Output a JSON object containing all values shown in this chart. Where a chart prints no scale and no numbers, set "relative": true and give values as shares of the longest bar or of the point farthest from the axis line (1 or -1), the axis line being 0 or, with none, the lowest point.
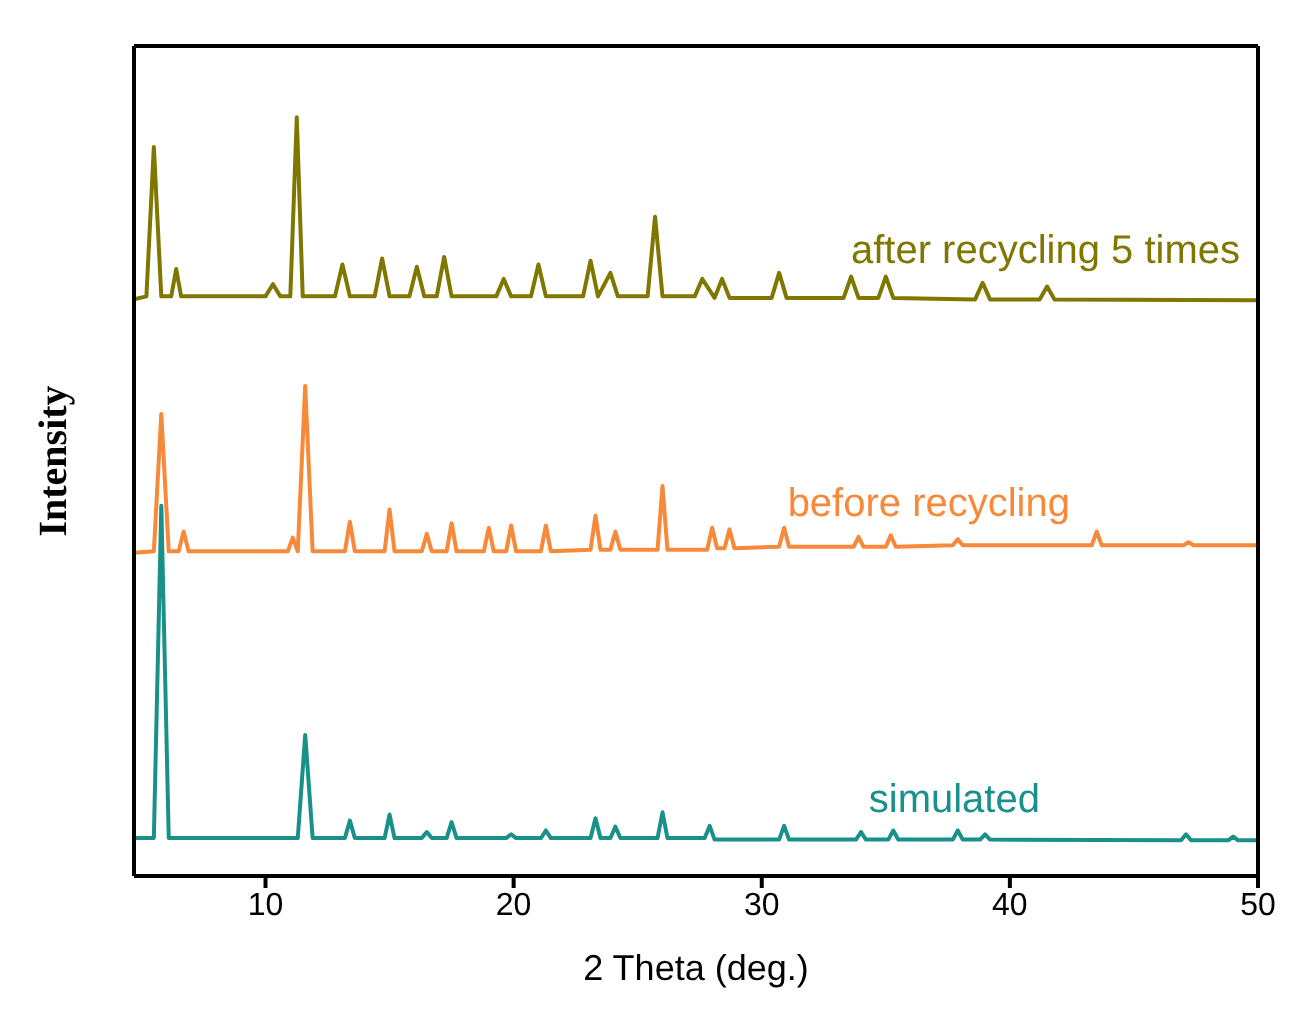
{
  "chart_data": {
    "type": "line",
    "relative": true,
    "xlabel": "2 Theta (deg.)",
    "ylabel": "Intensity",
    "xlim": [
      4.7,
      50
    ],
    "xticks": [
      10,
      20,
      30,
      40,
      50
    ],
    "marker": "none",
    "line_style": "solid",
    "series": [
      {
        "name": "after recycling 5 times",
        "color": "#7f7700",
        "x": [
          4.7,
          5.2,
          5.5,
          5.8,
          6.2,
          6.4,
          6.6,
          10.0,
          10.3,
          10.6,
          11.0,
          11.26,
          11.5,
          12.8,
          13.1,
          13.4,
          14.4,
          14.7,
          15.0,
          15.8,
          16.1,
          16.4,
          16.9,
          17.2,
          17.5,
          19.3,
          19.6,
          19.9,
          20.7,
          21.0,
          21.3,
          22.8,
          23.1,
          23.4,
          23.9,
          24.2,
          25.4,
          25.7,
          26.0,
          27.3,
          27.6,
          28.1,
          28.4,
          28.7,
          30.4,
          30.7,
          31.0,
          33.3,
          33.6,
          33.9,
          34.7,
          35.0,
          35.3,
          38.6,
          38.9,
          39.2,
          41.2,
          41.5,
          41.8,
          50
        ],
        "values": [
          0.76,
          0.764,
          0.961,
          0.764,
          0.764,
          0.8,
          0.764,
          0.764,
          0.78,
          0.764,
          0.764,
          1,
          0.764,
          0.764,
          0.806,
          0.764,
          0.764,
          0.814,
          0.764,
          0.764,
          0.803,
          0.764,
          0.764,
          0.816,
          0.764,
          0.764,
          0.787,
          0.764,
          0.764,
          0.806,
          0.764,
          0.764,
          0.811,
          0.764,
          0.795,
          0.764,
          0.764,
          0.869,
          0.764,
          0.764,
          0.787,
          0.762,
          0.787,
          0.762,
          0.762,
          0.795,
          0.762,
          0.762,
          0.79,
          0.762,
          0.762,
          0.79,
          0.762,
          0.76,
          0.782,
          0.76,
          0.76,
          0.777,
          0.76,
          0.759
        ]
      },
      {
        "name": "before recycling",
        "color": "#f7893a",
        "x": [
          4.7,
          5.5,
          5.8,
          6.1,
          6.5,
          6.7,
          6.9,
          10.9,
          11.1,
          11.3,
          11.6,
          11.9,
          13.2,
          13.4,
          13.6,
          14.8,
          15.0,
          15.2,
          16.3,
          16.5,
          16.7,
          17.3,
          17.5,
          17.7,
          18.8,
          19.0,
          19.2,
          19.7,
          19.9,
          20.1,
          21.1,
          21.3,
          21.5,
          23.1,
          23.3,
          23.5,
          23.9,
          24.1,
          24.3,
          25.8,
          26.0,
          26.2,
          27.8,
          28.0,
          28.2,
          28.5,
          28.7,
          28.9,
          30.7,
          30.9,
          31.1,
          33.7,
          33.9,
          34.1,
          35.0,
          35.2,
          35.4,
          37.7,
          37.9,
          38.1,
          43.3,
          43.5,
          43.7,
          47.0,
          47.2,
          47.4,
          50
        ],
        "values": [
          0.426,
          0.428,
          0.609,
          0.428,
          0.428,
          0.454,
          0.428,
          0.428,
          0.446,
          0.428,
          0.646,
          0.428,
          0.428,
          0.467,
          0.428,
          0.428,
          0.483,
          0.428,
          0.428,
          0.451,
          0.428,
          0.428,
          0.465,
          0.428,
          0.428,
          0.459,
          0.428,
          0.428,
          0.462,
          0.428,
          0.428,
          0.462,
          0.428,
          0.43,
          0.475,
          0.43,
          0.43,
          0.454,
          0.43,
          0.43,
          0.514,
          0.43,
          0.43,
          0.459,
          0.432,
          0.432,
          0.457,
          0.432,
          0.434,
          0.459,
          0.434,
          0.434,
          0.447,
          0.434,
          0.434,
          0.449,
          0.434,
          0.436,
          0.444,
          0.436,
          0.436,
          0.454,
          0.436,
          0.436,
          0.44,
          0.436,
          0.436
        ]
      },
      {
        "name": "simulated",
        "color": "#19918a",
        "x": [
          4.7,
          5.5,
          5.8,
          6.1,
          11.3,
          11.6,
          11.9,
          13.2,
          13.4,
          13.6,
          14.8,
          15.0,
          15.2,
          16.3,
          16.5,
          16.7,
          17.3,
          17.5,
          17.7,
          19.7,
          19.9,
          20.1,
          21.1,
          21.3,
          21.5,
          23.1,
          23.3,
          23.5,
          23.9,
          24.1,
          24.3,
          25.8,
          26.0,
          26.2,
          27.7,
          27.9,
          28.1,
          30.7,
          30.9,
          31.1,
          33.8,
          34.0,
          34.2,
          35.1,
          35.3,
          35.5,
          37.7,
          37.9,
          38.1,
          38.8,
          39.0,
          39.2,
          46.9,
          47.1,
          47.3,
          48.8,
          49.0,
          49.2,
          50
        ],
        "values": [
          0.05,
          0.05,
          0.488,
          0.05,
          0.05,
          0.186,
          0.05,
          0.05,
          0.073,
          0.05,
          0.05,
          0.081,
          0.05,
          0.05,
          0.058,
          0.05,
          0.05,
          0.071,
          0.05,
          0.05,
          0.055,
          0.05,
          0.05,
          0.06,
          0.05,
          0.05,
          0.076,
          0.05,
          0.05,
          0.065,
          0.05,
          0.05,
          0.084,
          0.05,
          0.05,
          0.066,
          0.048,
          0.048,
          0.066,
          0.048,
          0.048,
          0.058,
          0.048,
          0.048,
          0.06,
          0.048,
          0.048,
          0.06,
          0.048,
          0.048,
          0.055,
          0.048,
          0.047,
          0.055,
          0.047,
          0.047,
          0.052,
          0.047,
          0.047
        ]
      }
    ]
  }
}
